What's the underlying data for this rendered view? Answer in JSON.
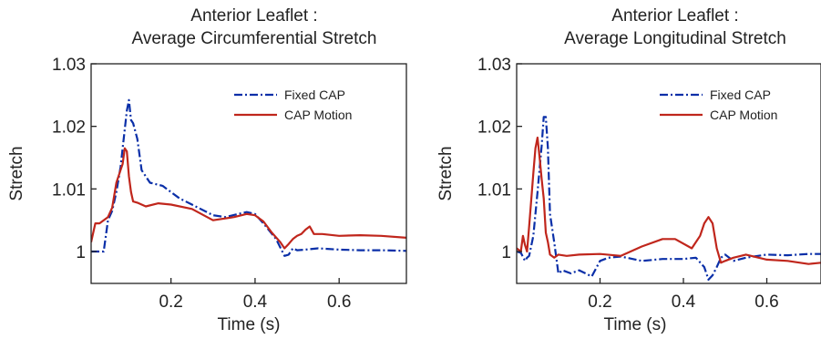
{
  "chart_data": [
    {
      "type": "line",
      "title": [
        "Anterior Leaflet :",
        "Average Circumferential Stretch"
      ],
      "xlabel": "Time (s)",
      "ylabel": "Stretch",
      "xlim": [
        0.01,
        0.76
      ],
      "ylim": [
        0.9949,
        1.03
      ],
      "xticks": [
        0.2,
        0.4,
        0.6
      ],
      "xtick_labels": [
        "0.2",
        "0.4",
        "0.6"
      ],
      "yticks": [
        1.0,
        1.01,
        1.02,
        1.03
      ],
      "ytick_labels": [
        "1",
        "1.01",
        "1.02",
        "1.03"
      ],
      "grid": false,
      "legend_position": "top-right",
      "series": [
        {
          "name": "Fixed CAP",
          "color": "#0a2fa8",
          "style": "dashdot",
          "x": [
            0.01,
            0.03,
            0.04,
            0.05,
            0.06,
            0.07,
            0.08,
            0.09,
            0.095,
            0.1,
            0.105,
            0.11,
            0.12,
            0.13,
            0.15,
            0.18,
            0.2,
            0.22,
            0.25,
            0.3,
            0.33,
            0.36,
            0.38,
            0.4,
            0.42,
            0.45,
            0.47,
            0.48,
            0.49,
            0.5,
            0.52,
            0.55,
            0.6,
            0.65,
            0.7,
            0.76
          ],
          "y": [
            1.0,
            1.0,
            1.0,
            1.005,
            1.0065,
            1.0095,
            1.0135,
            1.0195,
            1.0225,
            1.0242,
            1.021,
            1.0205,
            1.018,
            1.013,
            1.011,
            1.0105,
            1.0095,
            1.0085,
            1.0075,
            1.0058,
            1.0055,
            1.006,
            1.0063,
            1.006,
            1.0045,
            1.002,
            0.9993,
            0.9995,
            1.0005,
            1.0002,
            1.0003,
            1.0005,
            1.0003,
            1.0002,
            1.0002,
            1.0001
          ]
        },
        {
          "name": "CAP Motion",
          "color": "#c0261c",
          "style": "solid",
          "x": [
            0.01,
            0.02,
            0.03,
            0.05,
            0.06,
            0.07,
            0.08,
            0.085,
            0.09,
            0.095,
            0.1,
            0.105,
            0.11,
            0.12,
            0.14,
            0.17,
            0.2,
            0.25,
            0.3,
            0.35,
            0.38,
            0.4,
            0.42,
            0.44,
            0.46,
            0.47,
            0.48,
            0.49,
            0.5,
            0.51,
            0.52,
            0.53,
            0.54,
            0.56,
            0.6,
            0.65,
            0.7,
            0.76
          ],
          "y": [
            1.0015,
            1.0045,
            1.0045,
            1.0055,
            1.007,
            1.011,
            1.013,
            1.014,
            1.0165,
            1.016,
            1.012,
            1.0095,
            1.008,
            1.0078,
            1.0072,
            1.0077,
            1.0075,
            1.0068,
            1.005,
            1.0055,
            1.006,
            1.0058,
            1.0048,
            1.003,
            1.0015,
            1.0005,
            1.0012,
            1.002,
            1.0025,
            1.0028,
            1.0035,
            1.004,
            1.0028,
            1.0028,
            1.0025,
            1.0026,
            1.0025,
            1.0022
          ]
        }
      ]
    },
    {
      "type": "line",
      "title": [
        "Anterior Leaflet :",
        "Average Longitudinal Stretch"
      ],
      "xlabel": "Time (s)",
      "ylabel": "Stretch",
      "xlim": [
        0.0,
        0.73
      ],
      "ylim": [
        0.9949,
        1.03
      ],
      "xticks": [
        0.2,
        0.4,
        0.6
      ],
      "xtick_labels": [
        "0.2",
        "0.4",
        "0.6"
      ],
      "yticks": [
        1.0,
        1.01,
        1.02,
        1.03
      ],
      "ytick_labels": [
        "1",
        "1.01",
        "1.02",
        "1.03"
      ],
      "grid": false,
      "legend_position": "top-right",
      "series": [
        {
          "name": "Fixed CAP",
          "color": "#0a2fa8",
          "style": "dashdot",
          "x": [
            0.0,
            0.01,
            0.02,
            0.025,
            0.03,
            0.04,
            0.05,
            0.06,
            0.065,
            0.07,
            0.075,
            0.08,
            0.09,
            0.1,
            0.11,
            0.13,
            0.15,
            0.18,
            0.2,
            0.22,
            0.25,
            0.3,
            0.35,
            0.4,
            0.43,
            0.45,
            0.46,
            0.47,
            0.48,
            0.49,
            0.5,
            0.52,
            0.55,
            0.6,
            0.65,
            0.7,
            0.73
          ],
          "y": [
            1.0,
            0.9998,
            0.9985,
            0.999,
            0.9993,
            1.0025,
            1.0095,
            1.017,
            1.0215,
            1.0215,
            1.0165,
            1.006,
            1.0015,
            0.9965,
            0.997,
            0.9965,
            0.997,
            0.996,
            0.9985,
            0.999,
            0.9992,
            0.9985,
            0.9988,
            0.9988,
            0.999,
            0.9975,
            0.9955,
            0.9962,
            0.9975,
            0.999,
            0.9995,
            0.9985,
            0.999,
            0.9995,
            0.9994,
            0.9996,
            0.9996
          ]
        },
        {
          "name": "CAP Motion",
          "color": "#c0261c",
          "style": "solid",
          "x": [
            0.0,
            0.01,
            0.015,
            0.02,
            0.025,
            0.03,
            0.04,
            0.045,
            0.05,
            0.055,
            0.06,
            0.065,
            0.07,
            0.075,
            0.08,
            0.09,
            0.1,
            0.12,
            0.15,
            0.2,
            0.25,
            0.3,
            0.35,
            0.38,
            0.42,
            0.44,
            0.45,
            0.46,
            0.47,
            0.48,
            0.49,
            0.5,
            0.52,
            0.55,
            0.6,
            0.65,
            0.7,
            0.73
          ],
          "y": [
            1.0005,
            1.0,
            1.0025,
            1.001,
            1.0,
            1.004,
            1.0125,
            1.0165,
            1.0182,
            1.015,
            1.0115,
            1.0085,
            1.003,
            1.0015,
            0.9995,
            0.999,
            0.9995,
            0.9993,
            0.9995,
            0.9996,
            0.9993,
            1.0008,
            1.002,
            1.002,
            1.0005,
            1.0025,
            1.0045,
            1.0055,
            1.0045,
            1.0005,
            0.9982,
            0.9985,
            0.999,
            0.9995,
            0.9987,
            0.9985,
            0.998,
            0.9982
          ]
        }
      ]
    }
  ]
}
